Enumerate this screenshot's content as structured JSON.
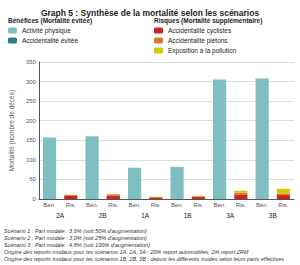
{
  "chart_data": {
    "type": "bar",
    "title": "Graph 5 : Synthèse de la mortalité selon les scénarios",
    "ylabel": "Mortalité (nombre de décès)",
    "categories": [
      "Bén.",
      "Ris.",
      "Bén.",
      "Ris.",
      "Bén.",
      "Ris.",
      "Bén.",
      "Ris.",
      "Bén.",
      "Ris.",
      "Bén.",
      "Ris."
    ],
    "group_labels": [
      "2A",
      "2B",
      "1A",
      "1B",
      "3A",
      "3B"
    ],
    "series_groups": [
      {
        "title": "Bénéfices (Mortalité évitée)",
        "series": [
          {
            "name": "Activité physique",
            "color": "#7fbfbf",
            "values": [
              157,
              null,
              160,
              null,
              80,
              null,
              82,
              null,
              305,
              null,
              308,
              null
            ]
          },
          {
            "name": "Accidentalité évitée",
            "color": "#2e8080",
            "values": [
              0,
              null,
              0,
              null,
              0,
              null,
              0,
              null,
              0,
              null,
              0,
              null
            ]
          }
        ]
      },
      {
        "title": "Risques (Mortalité supplémentaire)",
        "series": [
          {
            "name": "Accidentalité cyclistes",
            "color": "#cc2222",
            "values": [
              null,
              8,
              null,
              9,
              null,
              4,
              null,
              5,
              null,
              12,
              null,
              10
            ]
          },
          {
            "name": "Accidentalité piétons",
            "color": "#e07820",
            "values": [
              null,
              2,
              null,
              3,
              null,
              1,
              null,
              2,
              null,
              4,
              null,
              4
            ]
          },
          {
            "name": "Exposition à la pollution",
            "color": "#d4c800",
            "values": [
              null,
              1,
              null,
              1,
              null,
              1,
              null,
              1,
              null,
              5,
              null,
              12
            ]
          }
        ]
      }
    ],
    "footnotes": [
      "Scénario 1 : Part modale : 3,6% (soit 50% d'augmentation)",
      "Scénario 2 : Part modale : 3,0% (soit 25% d'augmentation)",
      "Scénario 3 : Part modale : 4,8% (soit 100% d'augmentation)",
      "Origine des reports modaux pour les scénarios 1A, 2A, 3A : 20% report automobiles, 2% report 2RM",
      "Origine des reports modaux pour les scénarios 1B, 2B, 3B : depuis les différents modes selon leurs parts effectives"
    ],
    "ylim": [
      0,
      350
    ],
    "yticks": [
      0,
      50,
      100,
      150,
      200,
      250,
      300,
      350
    ],
    "grid": true,
    "stacked": true,
    "legend": "top"
  }
}
